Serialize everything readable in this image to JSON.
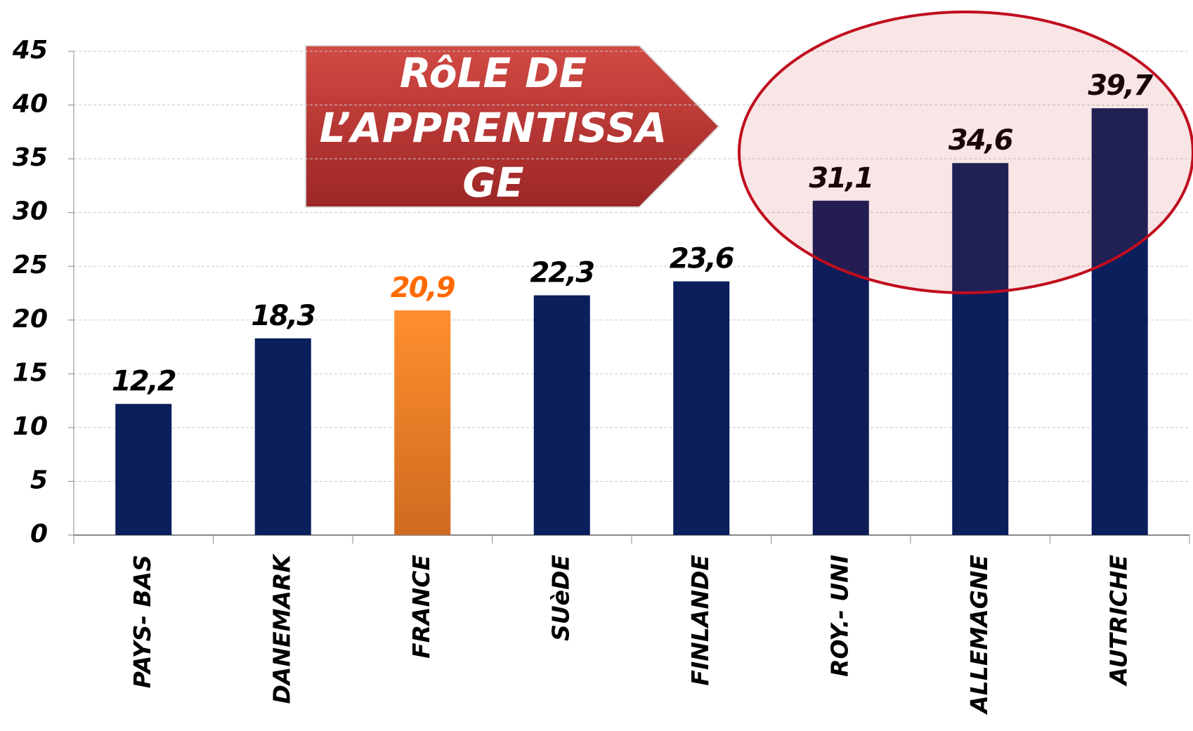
{
  "chart_data": {
    "type": "bar",
    "categories": [
      "PAYS- BAS",
      "DANEMARK",
      "FRANCE",
      "SUèDE",
      "FINLANDE",
      "ROY.- UNI",
      "ALLEMAGNE",
      "AUTRICHE"
    ],
    "values": [
      12.2,
      18.3,
      20.9,
      22.3,
      23.6,
      31.1,
      34.6,
      39.7
    ],
    "value_labels": [
      "12,2",
      "18,3",
      "20,9",
      "22,3",
      "23,6",
      "31,1",
      "34,6",
      "39,7"
    ],
    "colors": [
      "#0a1f5c",
      "#0a1f5c",
      "#f0862a",
      "#0a1f5c",
      "#0a1f5c",
      "#0e1c58",
      "#0a1f5c",
      "#0a1f5c"
    ],
    "label_colors": [
      "#000000",
      "#000000",
      "#ff6a00",
      "#000000",
      "#000000",
      "#000000",
      "#000000",
      "#000000"
    ],
    "ylim": [
      0,
      45
    ],
    "yticks": [
      0,
      5,
      10,
      15,
      20,
      25,
      30,
      35,
      40,
      45
    ],
    "grid": true,
    "annotation": [
      "RôLE DE",
      "L’APPRENTISSA",
      "GE"
    ]
  }
}
